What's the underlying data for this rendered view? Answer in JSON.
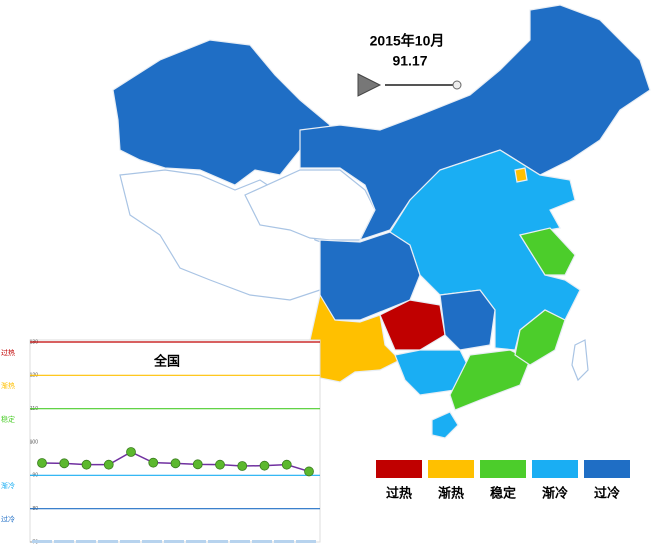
{
  "header": {
    "date": "2015年10月",
    "value": "91.17"
  },
  "chart_data": {
    "type": "line",
    "title": "全国",
    "categories": [
      null,
      null,
      null,
      null,
      null,
      null,
      null,
      null,
      null,
      null,
      null,
      null,
      null
    ],
    "values": [
      93.7,
      93.6,
      93.2,
      93.2,
      97.0,
      93.8,
      93.6,
      93.3,
      93.2,
      92.8,
      92.9,
      93.2,
      91.17
    ],
    "color": "#7030a0",
    "marker_color": "#5cb82e",
    "ylim": [
      70,
      130
    ],
    "yticks": [
      130,
      120,
      110,
      100,
      90,
      80,
      70
    ],
    "bands": [
      {
        "name": "过热",
        "value": 130,
        "color": "#c00000"
      },
      {
        "name": "渐热",
        "value": 120,
        "color": "#ffc000"
      },
      {
        "name": "稳定",
        "value": 110,
        "color": "#4ccd2b"
      },
      {
        "name": "渐冷",
        "value": 90,
        "color": "#1aaef3"
      },
      {
        "name": "过冷",
        "value": 80,
        "color": "#1f6ec5"
      }
    ]
  }
}
